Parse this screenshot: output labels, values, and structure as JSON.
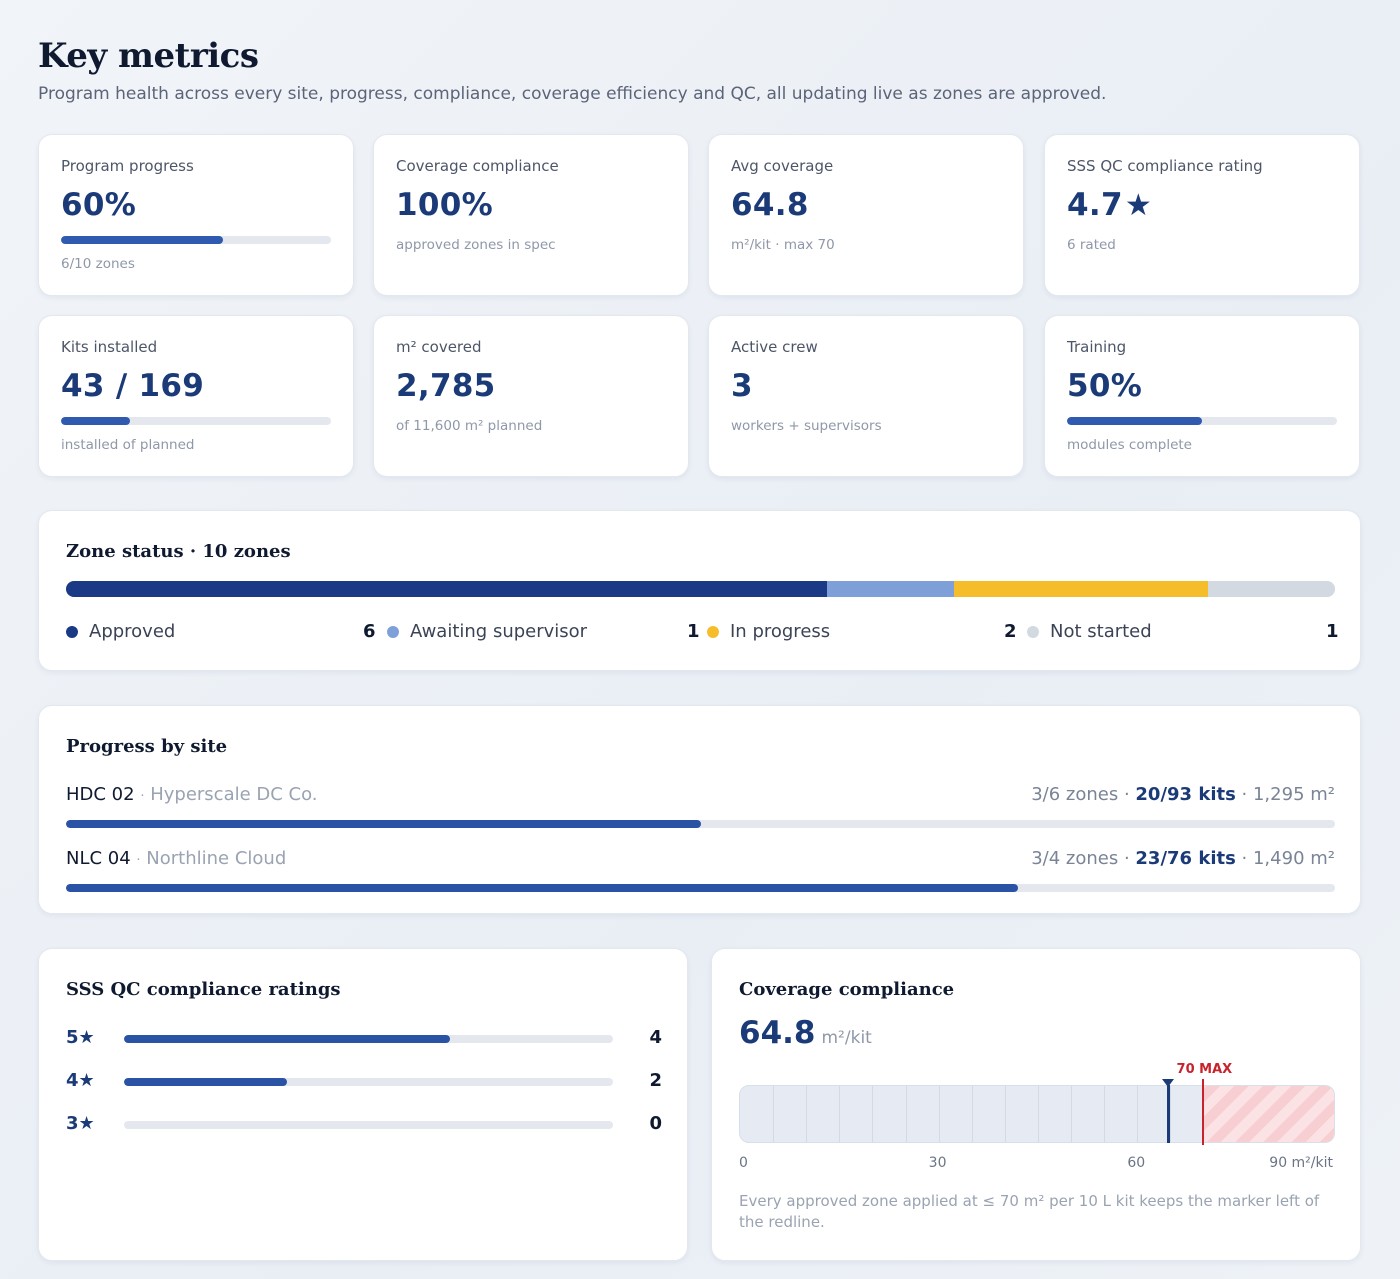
{
  "header": {
    "title": "Key metrics",
    "subtitle": "Program health across every site, progress, compliance, coverage efficiency and QC, all updating live as zones are approved."
  },
  "metrics": [
    {
      "label": "Program progress",
      "value": "60%",
      "sub": "6/10 zones",
      "progress": 0.6
    },
    {
      "label": "Coverage compliance",
      "value": "100%",
      "sub": "approved zones in spec"
    },
    {
      "label": "Avg coverage",
      "value": "64.8",
      "sub": "m²/kit · max 70"
    },
    {
      "label": "SSS QC compliance rating",
      "value": "4.7",
      "icon": "star-icon",
      "sub": "6 rated"
    },
    {
      "label": "Kits installed",
      "value": "43 / 169",
      "sub": "installed of planned",
      "progress": 0.254
    },
    {
      "label": "m² covered",
      "value": "2,785",
      "sub": "of 11,600 m² planned"
    },
    {
      "label": "Active crew",
      "value": "3",
      "sub": "workers + supervisors"
    },
    {
      "label": "Training",
      "value": "50%",
      "sub": "modules complete",
      "progress": 0.5
    }
  ],
  "zone_status": {
    "title": "Zone status · 10 zones",
    "items": [
      {
        "label": "Approved",
        "count": "6",
        "color": "#1b3a86"
      },
      {
        "label": "Awaiting supervisor",
        "count": "1",
        "color": "#7e9fd8"
      },
      {
        "label": "In progress",
        "count": "2",
        "color": "#f6bd2b"
      },
      {
        "label": "Not started",
        "count": "1",
        "color": "#d3d9e1"
      }
    ]
  },
  "sites": {
    "title": "Progress by site",
    "items": [
      {
        "code": "HDC 02",
        "client": "Hyperscale DC Co.",
        "zones": "3/6 zones",
        "kits": "20/93 kits",
        "area": "1,295 m²",
        "progress": 0.5
      },
      {
        "code": "NLC 04",
        "client": "Northline Cloud",
        "zones": "3/4 zones",
        "kits": "23/76 kits",
        "area": "1,490 m²",
        "progress": 0.75
      }
    ]
  },
  "ratings": {
    "title": "SSS QC compliance ratings",
    "items": [
      {
        "label": "5★",
        "count": "4",
        "value": 4
      },
      {
        "label": "4★",
        "count": "2",
        "value": 2
      },
      {
        "label": "3★",
        "count": "0",
        "value": 0
      }
    ],
    "max": 6
  },
  "coverage": {
    "title": "Coverage compliance",
    "value": "64.8",
    "unit": "m²/kit",
    "max_label": "70 MAX",
    "marker_value": 64.8,
    "max_value": 70,
    "axis_min": 0,
    "axis_max": 90,
    "axis_labels": [
      "0",
      "30",
      "60",
      "90 m²/kit"
    ],
    "note": "Every approved zone applied at ≤ 70 m² per 10 L kit keeps the marker left of the redline."
  }
}
